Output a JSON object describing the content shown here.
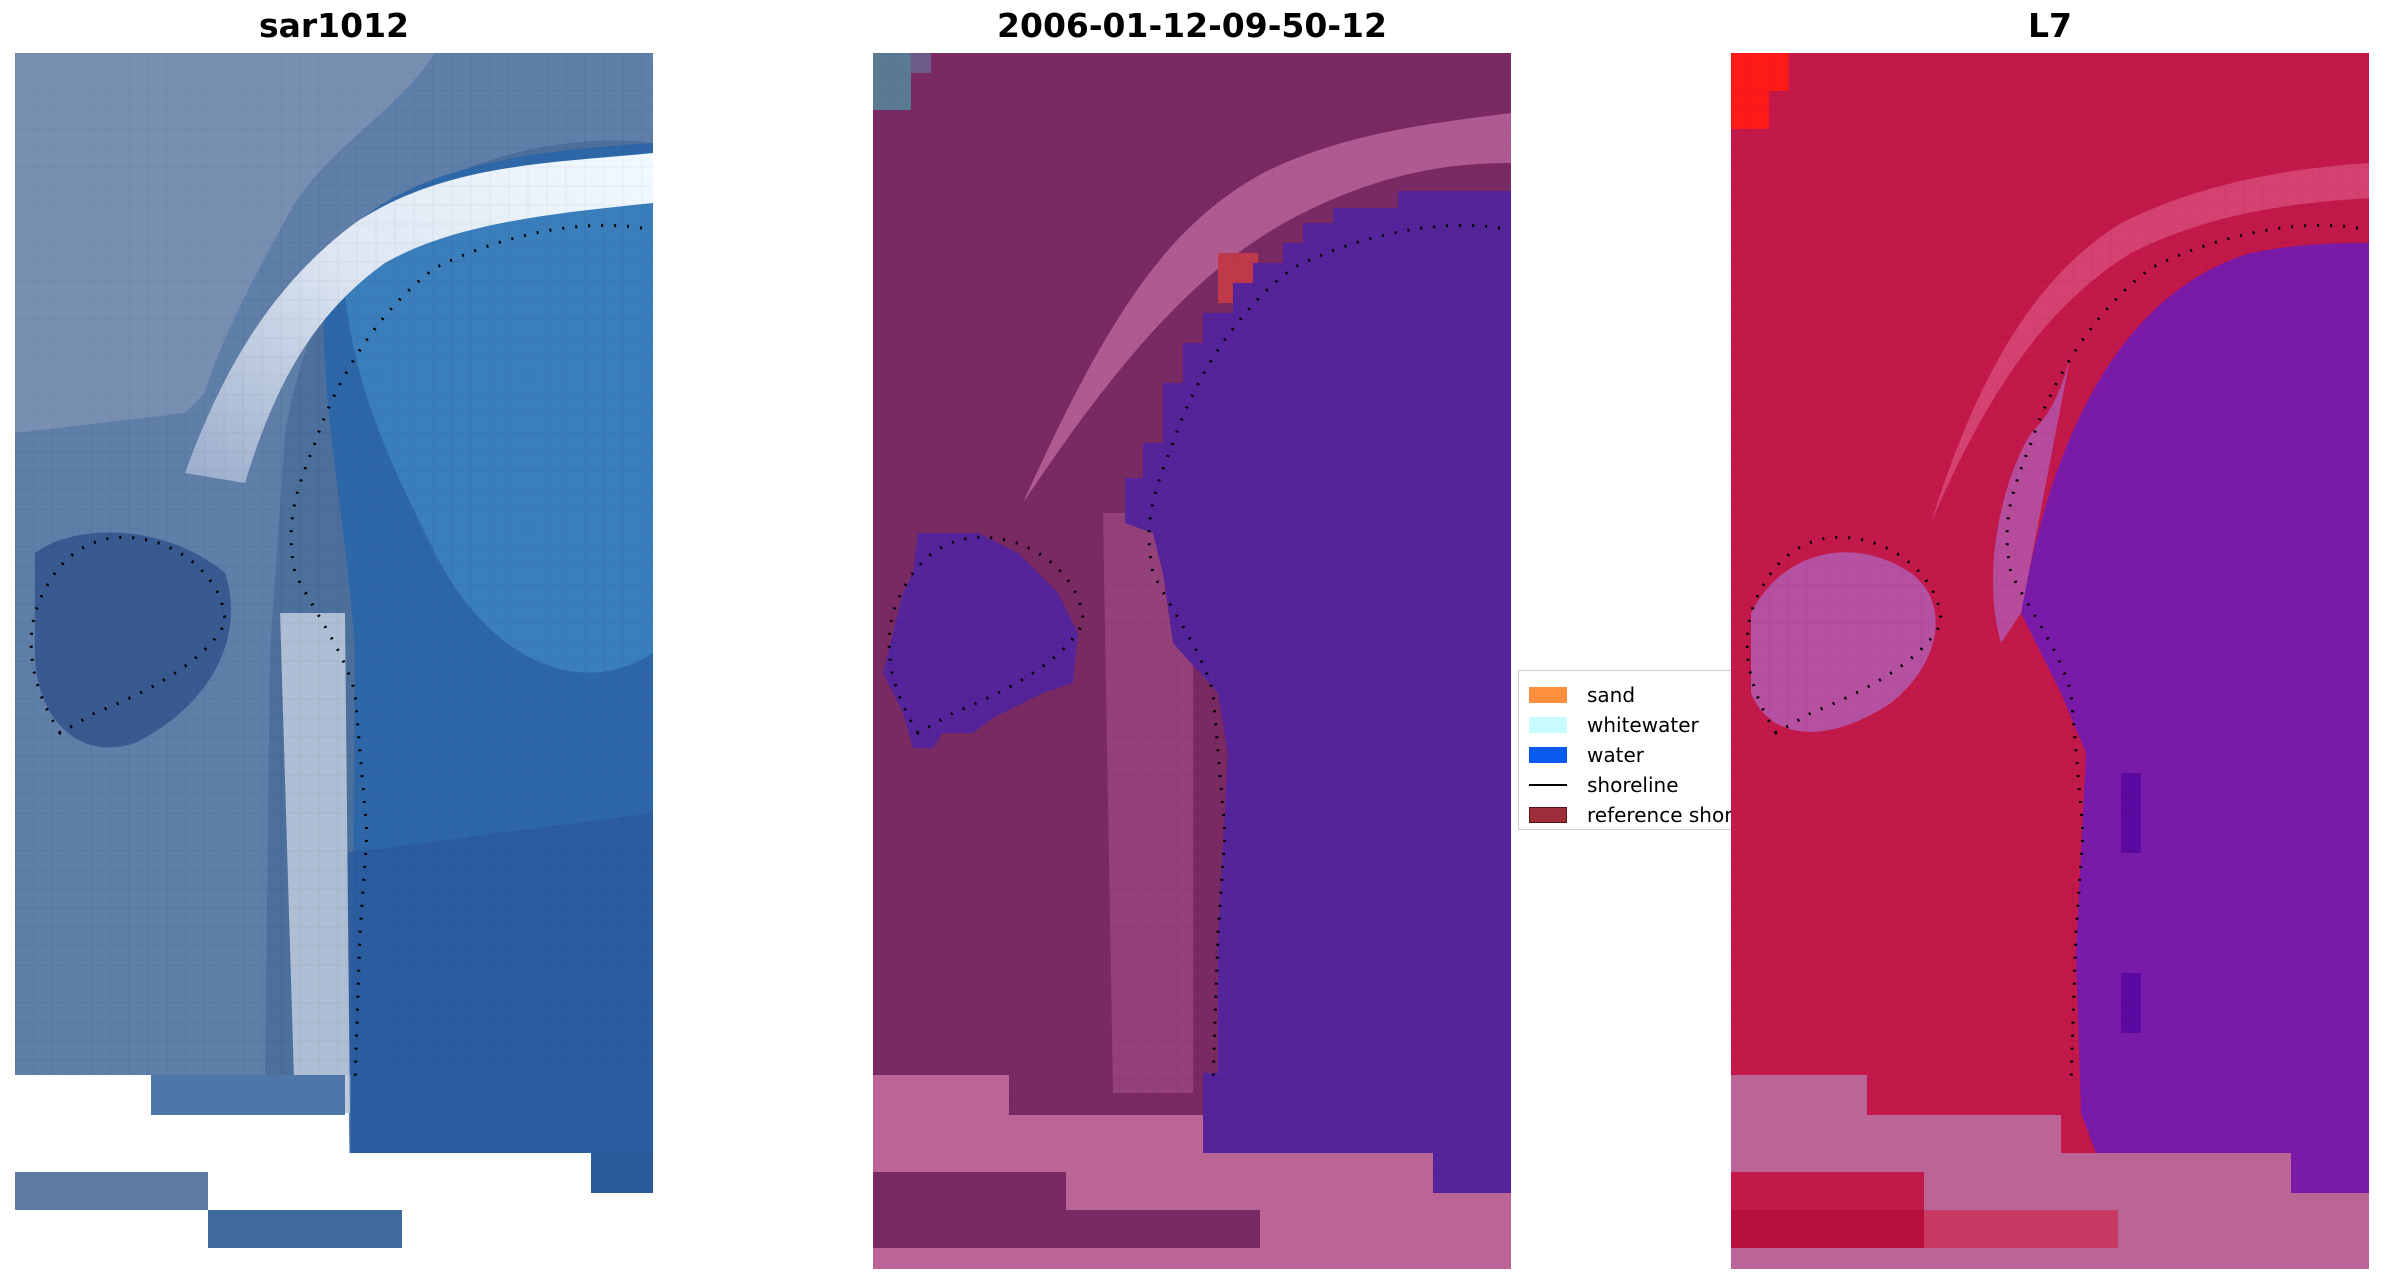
{
  "panels": [
    {
      "id": "satellite",
      "title": "sar1012",
      "colors": {
        "base": "#2f5b96",
        "land": "#5d7aa3",
        "land_light": "#8c9bb8",
        "water": "#2e66a6",
        "water_light": "#3c82bf",
        "surf": "#e6eef8",
        "surf_mid": "#b9c7da"
      }
    },
    {
      "id": "classified",
      "title": "2006-01-12-09-50-12",
      "colors": {
        "land": "#7a2a62",
        "land_light": "#9a4682",
        "water": "#55239a",
        "sand_overlay": "#b8649a",
        "red_patch": "#c0394a",
        "blue_corner": "#5b7a92"
      }
    },
    {
      "id": "index",
      "title": "L7",
      "colors": {
        "land": "#c2184a",
        "land_light": "#d84a78",
        "water": "#7a1aa8",
        "water_dark": "#5a0aa0",
        "transition": "#b45ab0",
        "overlay": "#bb6496",
        "hot": "#ff1a1a"
      }
    }
  ],
  "legend": {
    "items": [
      {
        "label": "sand",
        "kind": "patch",
        "color": "#ff9040"
      },
      {
        "label": "whitewater",
        "kind": "patch",
        "color": "#c8fbff"
      },
      {
        "label": "water",
        "kind": "patch",
        "color": "#0a5cf0"
      },
      {
        "label": "shoreline",
        "kind": "line",
        "color": "#000000"
      },
      {
        "label": "reference shoreline",
        "kind": "patch",
        "color": "#9c2e3a"
      }
    ]
  }
}
